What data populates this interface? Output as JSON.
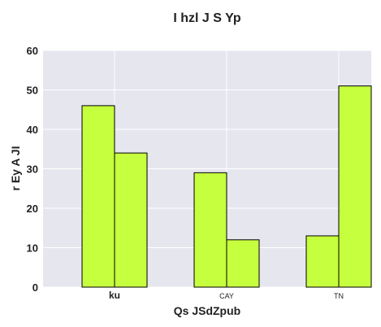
{
  "chart_data": {
    "type": "bar",
    "title": "I hzl J S Yp",
    "xlabel": "Qs JSdZpub",
    "ylabel": "r Ey A   JI",
    "categories": [
      "ku",
      "CAY",
      "TN"
    ],
    "series": [
      {
        "values": [
          46,
          29,
          13
        ]
      },
      {
        "values": [
          34,
          12,
          51
        ]
      }
    ],
    "ylim": [
      0,
      60
    ],
    "yticks": [
      0,
      10,
      20,
      30,
      40,
      50,
      60
    ],
    "grid": true,
    "legend": "none",
    "colors": {
      "bar": "#c6ff3d",
      "plot_background": "#e6e6ef",
      "grid": "#ffffff",
      "edge": "#000000"
    }
  }
}
